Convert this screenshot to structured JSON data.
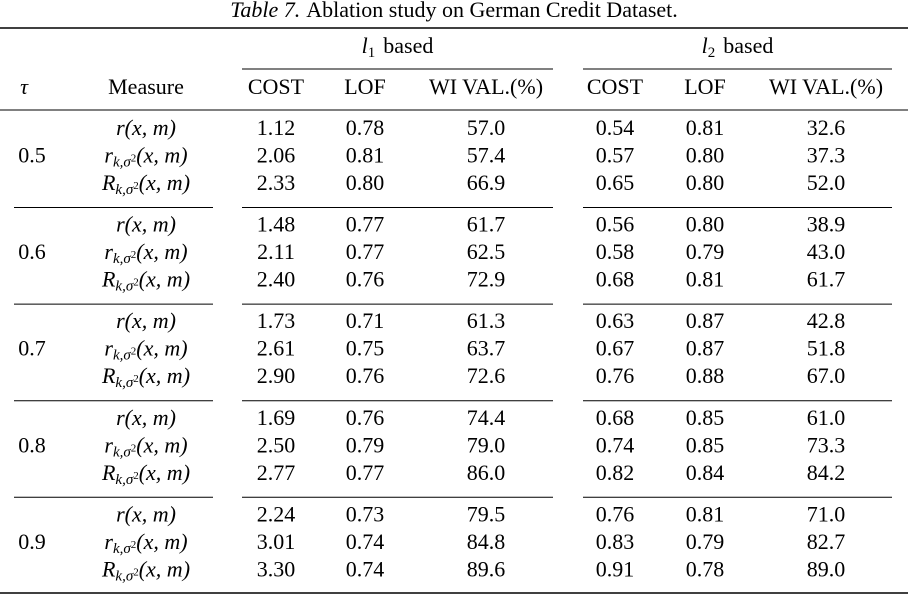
{
  "caption": {
    "label": "Table 7.",
    "text": "Ablation study on German Credit Dataset."
  },
  "header": {
    "tau": "τ",
    "measure": "Measure",
    "groups": [
      {
        "base": "l",
        "sub": "1",
        "text": "based",
        "columns": [
          "COST",
          "LOF",
          "WI VAL.(%)"
        ]
      },
      {
        "base": "l",
        "sub": "2",
        "text": "based",
        "columns": [
          "COST",
          "LOF",
          "WI VAL.(%)"
        ]
      }
    ]
  },
  "measures": [
    {
      "base": "r",
      "args": "(x, m)"
    },
    {
      "base": "r",
      "sub": "k,σ",
      "sup": "2",
      "args": "(x, m)"
    },
    {
      "base": "R",
      "sub": "k,σ",
      "sup": "2",
      "args": "(x, m)"
    }
  ],
  "groups": [
    {
      "tau": "0.5",
      "rows": [
        [
          "1.12",
          "0.78",
          "57.0",
          "0.54",
          "0.81",
          "32.6"
        ],
        [
          "2.06",
          "0.81",
          "57.4",
          "0.57",
          "0.80",
          "37.3"
        ],
        [
          "2.33",
          "0.80",
          "66.9",
          "0.65",
          "0.80",
          "52.0"
        ]
      ]
    },
    {
      "tau": "0.6",
      "rows": [
        [
          "1.48",
          "0.77",
          "61.7",
          "0.56",
          "0.80",
          "38.9"
        ],
        [
          "2.11",
          "0.77",
          "62.5",
          "0.58",
          "0.79",
          "43.0"
        ],
        [
          "2.40",
          "0.76",
          "72.9",
          "0.68",
          "0.81",
          "61.7"
        ]
      ]
    },
    {
      "tau": "0.7",
      "rows": [
        [
          "1.73",
          "0.71",
          "61.3",
          "0.63",
          "0.87",
          "42.8"
        ],
        [
          "2.61",
          "0.75",
          "63.7",
          "0.67",
          "0.87",
          "51.8"
        ],
        [
          "2.90",
          "0.76",
          "72.6",
          "0.76",
          "0.88",
          "67.0"
        ]
      ]
    },
    {
      "tau": "0.8",
      "rows": [
        [
          "1.69",
          "0.76",
          "74.4",
          "0.68",
          "0.85",
          "61.0"
        ],
        [
          "2.50",
          "0.79",
          "79.0",
          "0.74",
          "0.85",
          "73.3"
        ],
        [
          "2.77",
          "0.77",
          "86.0",
          "0.82",
          "0.84",
          "84.2"
        ]
      ]
    },
    {
      "tau": "0.9",
      "rows": [
        [
          "2.24",
          "0.73",
          "79.5",
          "0.76",
          "0.81",
          "71.0"
        ],
        [
          "3.01",
          "0.74",
          "84.8",
          "0.83",
          "0.79",
          "82.7"
        ],
        [
          "3.30",
          "0.74",
          "89.6",
          "0.91",
          "0.78",
          "89.0"
        ]
      ]
    }
  ]
}
